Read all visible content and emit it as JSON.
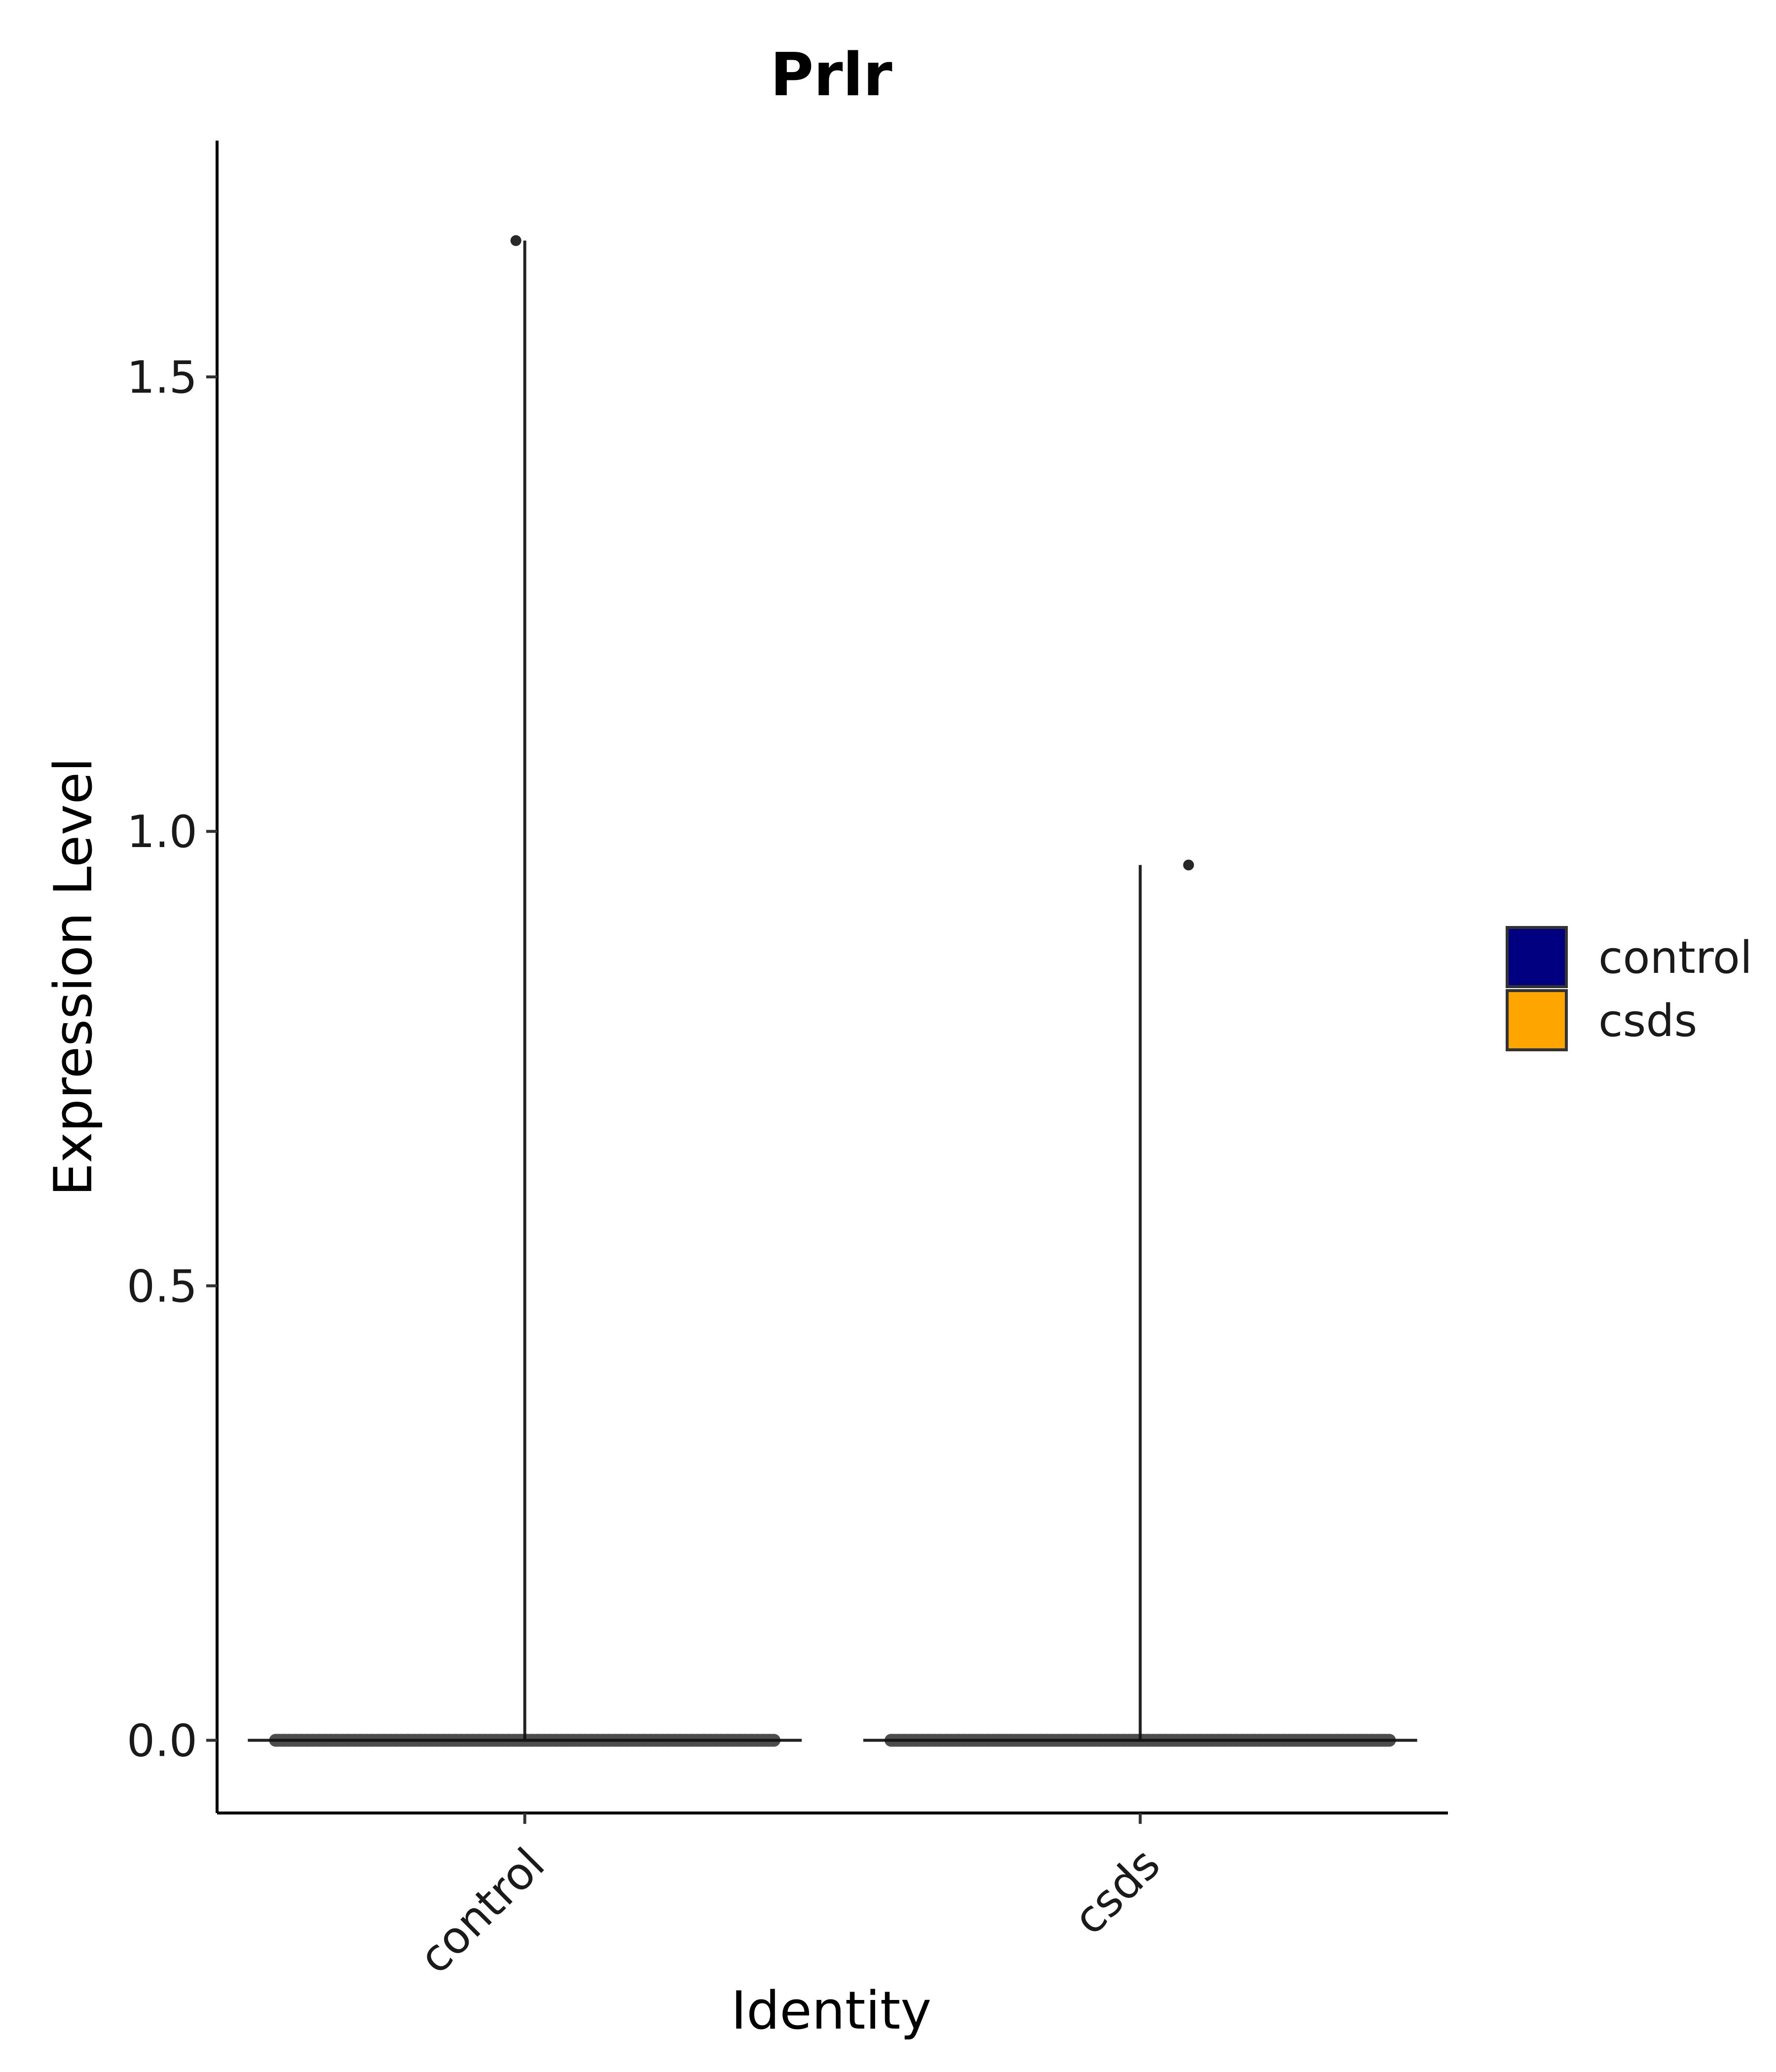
{
  "chart_data": {
    "type": "violin",
    "title": "Prlr",
    "xlabel": "Identity",
    "ylabel": "Expression Level",
    "categories": [
      "control",
      "csds"
    ],
    "ylim": [
      -0.08,
      1.76
    ],
    "yticks": [
      0.0,
      0.5,
      1.0,
      1.5
    ],
    "ytick_labels": [
      "0.0",
      "0.5",
      "1.0",
      "1.5"
    ],
    "grid": false,
    "legend": {
      "position": "right",
      "entries": [
        {
          "label": "control",
          "color": "#000080"
        },
        {
          "label": "csds",
          "color": "#FFA500"
        }
      ]
    },
    "series": [
      {
        "category": "control",
        "color": "#000080",
        "min": 0.0,
        "max": 1.65,
        "outlier_points": [
          1.65
        ]
      },
      {
        "category": "csds",
        "color": "#FFA500",
        "min": 0.0,
        "max": 0.963,
        "outlier_points": [
          0.963
        ]
      }
    ]
  }
}
